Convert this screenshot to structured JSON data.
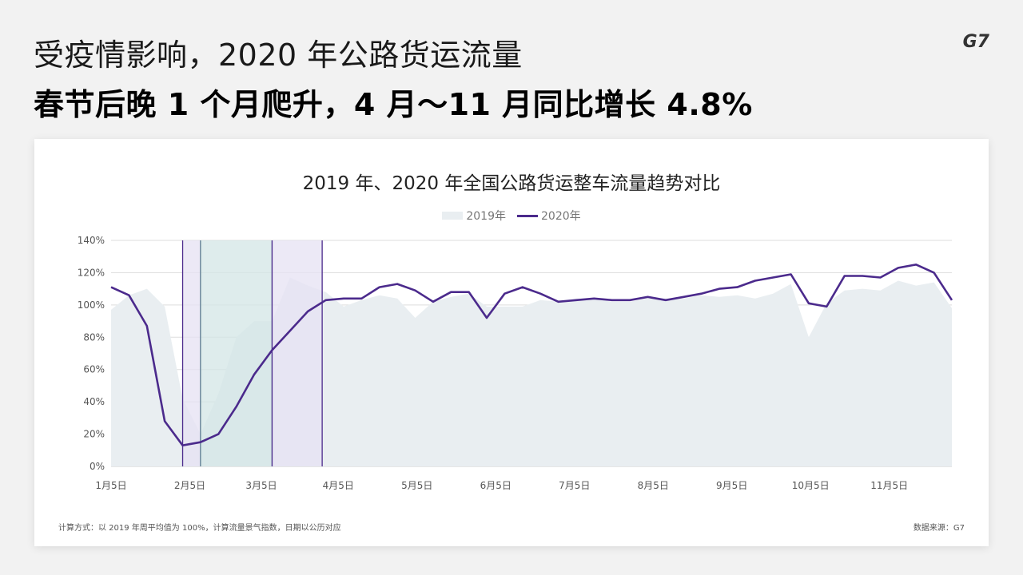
{
  "header": {
    "line1": "受疫情影响，2020 年公路货运流量",
    "line2": "春节后晚 1 个月爬升，4 月～11 月同比增长 4.8%",
    "logo": "G7"
  },
  "footer": {
    "note": "计算方式：以 2019 年周平均值为 100%，计算流量景气指数，日期以公历对应",
    "source": "数据来源：G7"
  },
  "colors": {
    "area2019": "#e9eef1",
    "line2020": "#4b2a8c",
    "band_purple": "#e6e1f3",
    "band_teal": "#d3e6e6"
  },
  "chart_data": {
    "type": "line",
    "title": "2019 年、2020 年全国公路货运整车流量趋势对比",
    "legend_position": "top",
    "grid": true,
    "ylim": [
      0,
      140
    ],
    "yticks": [
      0,
      20,
      40,
      60,
      80,
      100,
      120,
      140
    ],
    "ytick_labels": [
      "0%",
      "20%",
      "40%",
      "60%",
      "80%",
      "100%",
      "120%",
      "140%"
    ],
    "xtick_labels": [
      "1月5日",
      "2月5日",
      "3月5日",
      "4月5日",
      "5月5日",
      "6月5日",
      "7月5日",
      "8月5日",
      "9月5日",
      "10月5日",
      "11月5日"
    ],
    "xtick_week_index": [
      0,
      4.4,
      8.4,
      12.7,
      17.1,
      21.5,
      25.9,
      30.3,
      34.7,
      39.1,
      43.5
    ],
    "highlight_bands": [
      {
        "from_week": 4.0,
        "to_week": 5.0,
        "style": "purple"
      },
      {
        "from_week": 5.0,
        "to_week": 9.0,
        "style": "teal"
      },
      {
        "from_week": 9.0,
        "to_week": 11.8,
        "style": "purple"
      }
    ],
    "series": [
      {
        "name": "2019年",
        "style": "area",
        "values": [
          97,
          106,
          110,
          99,
          42,
          20,
          45,
          80,
          90,
          90,
          117,
          112,
          108,
          99,
          103,
          106,
          104,
          92,
          102,
          105,
          107,
          99,
          99,
          99,
          103,
          102,
          104,
          104,
          102,
          102,
          104,
          104,
          104,
          106,
          105,
          106,
          104,
          107,
          113,
          80,
          101,
          109,
          110,
          109,
          115,
          112,
          114,
          98
        ]
      },
      {
        "name": "2020年",
        "style": "line",
        "values": [
          111,
          106,
          87,
          28,
          13,
          15,
          20,
          37,
          57,
          72,
          84,
          96,
          103,
          104,
          104,
          111,
          113,
          109,
          102,
          108,
          108,
          92,
          107,
          111,
          107,
          102,
          103,
          104,
          103,
          103,
          105,
          103,
          105,
          107,
          110,
          111,
          115,
          117,
          119,
          101,
          99,
          118,
          118,
          117,
          123,
          125,
          120,
          103
        ]
      }
    ]
  }
}
